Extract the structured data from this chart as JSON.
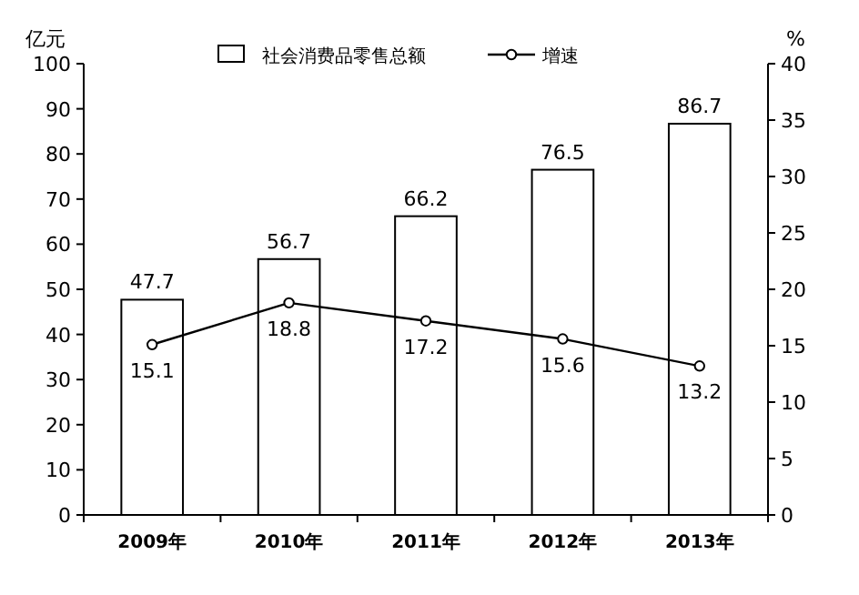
{
  "chart_data": {
    "type": "bar",
    "ylabel": "亿元",
    "y2label": "%",
    "categories": [
      "2009年",
      "2010年",
      "2011年",
      "2012年",
      "2013年"
    ],
    "series": [
      {
        "name": "社会消费品零售总额",
        "color": "#ffffff",
        "values": [
          47.7,
          56.7,
          66.2,
          76.5,
          86.7
        ]
      },
      {
        "name": "增速",
        "type": "line",
        "axis": "y2",
        "color": "#000000",
        "values": [
          15.1,
          18.8,
          17.2,
          15.6,
          13.2
        ]
      }
    ],
    "ylim": [
      0,
      100
    ],
    "yticks": [
      0,
      10,
      20,
      30,
      40,
      50,
      60,
      70,
      80,
      90,
      100
    ],
    "y2lim": [
      0,
      40
    ],
    "y2ticks": [
      0,
      5,
      10,
      15,
      20,
      25,
      30,
      35,
      40
    ],
    "data_labels": true,
    "legend": "top",
    "marker": "circle",
    "grid": false
  }
}
